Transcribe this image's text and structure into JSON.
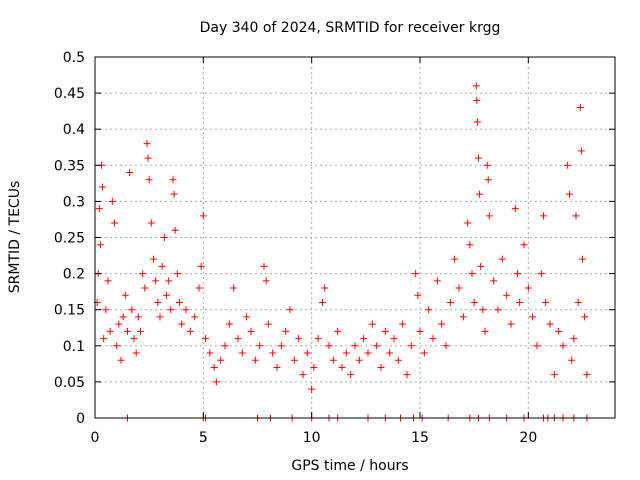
{
  "chart_data": {
    "type": "scatter",
    "title": "Day 340 of 2024, SRMTID for receiver krgg",
    "xlabel": "GPS time / hours",
    "ylabel": "SRMTID / TECUs",
    "xlim": [
      0,
      24
    ],
    "ylim": [
      0,
      0.5
    ],
    "x_ticks": [
      0,
      5,
      10,
      15,
      20
    ],
    "y_ticks": [
      0,
      0.05,
      0.1,
      0.15,
      0.2,
      0.25,
      0.3,
      0.35,
      0.4,
      0.45,
      0.5
    ],
    "grid": true,
    "marker": "+",
    "color": "#ff0000",
    "zero_points_x": [
      1.5,
      5.0,
      5.1,
      7.5,
      8.1,
      9.1,
      10.0,
      10.8,
      11.2,
      12.6,
      13.4,
      14.1,
      14.7,
      15.1,
      16.3,
      17.3,
      17.7,
      18.2,
      19.0,
      19.8,
      20.7,
      20.9,
      21.2,
      21.6,
      22.1,
      22.7
    ],
    "series": [
      {
        "name": "SRMTID",
        "points": [
          [
            0.1,
            0.16
          ],
          [
            0.15,
            0.2
          ],
          [
            0.2,
            0.29
          ],
          [
            0.25,
            0.24
          ],
          [
            0.3,
            0.35
          ],
          [
            0.35,
            0.32
          ],
          [
            0.4,
            0.11
          ],
          [
            0.5,
            0.15
          ],
          [
            0.6,
            0.19
          ],
          [
            0.7,
            0.12
          ],
          [
            0.8,
            0.3
          ],
          [
            0.9,
            0.27
          ],
          [
            1.0,
            0.1
          ],
          [
            1.1,
            0.13
          ],
          [
            1.2,
            0.08
          ],
          [
            1.3,
            0.14
          ],
          [
            1.4,
            0.17
          ],
          [
            1.5,
            0.12
          ],
          [
            1.6,
            0.34
          ],
          [
            1.7,
            0.15
          ],
          [
            1.8,
            0.11
          ],
          [
            1.9,
            0.09
          ],
          [
            2.0,
            0.14
          ],
          [
            2.1,
            0.12
          ],
          [
            2.2,
            0.2
          ],
          [
            2.3,
            0.18
          ],
          [
            2.4,
            0.38
          ],
          [
            2.45,
            0.36
          ],
          [
            2.5,
            0.33
          ],
          [
            2.6,
            0.27
          ],
          [
            2.7,
            0.22
          ],
          [
            2.8,
            0.19
          ],
          [
            2.9,
            0.16
          ],
          [
            3.0,
            0.14
          ],
          [
            3.1,
            0.21
          ],
          [
            3.2,
            0.25
          ],
          [
            3.3,
            0.17
          ],
          [
            3.4,
            0.19
          ],
          [
            3.5,
            0.15
          ],
          [
            3.6,
            0.33
          ],
          [
            3.65,
            0.31
          ],
          [
            3.7,
            0.26
          ],
          [
            3.8,
            0.2
          ],
          [
            3.9,
            0.16
          ],
          [
            4.0,
            0.13
          ],
          [
            4.2,
            0.15
          ],
          [
            4.4,
            0.12
          ],
          [
            4.6,
            0.14
          ],
          [
            4.8,
            0.18
          ],
          [
            4.9,
            0.21
          ],
          [
            5.0,
            0.28
          ],
          [
            5.1,
            0.11
          ],
          [
            5.3,
            0.09
          ],
          [
            5.5,
            0.07
          ],
          [
            5.6,
            0.05
          ],
          [
            5.8,
            0.08
          ],
          [
            6.0,
            0.1
          ],
          [
            6.2,
            0.13
          ],
          [
            6.4,
            0.18
          ],
          [
            6.6,
            0.11
          ],
          [
            6.8,
            0.09
          ],
          [
            7.0,
            0.14
          ],
          [
            7.2,
            0.12
          ],
          [
            7.4,
            0.08
          ],
          [
            7.6,
            0.1
          ],
          [
            7.8,
            0.21
          ],
          [
            7.9,
            0.19
          ],
          [
            8.0,
            0.13
          ],
          [
            8.2,
            0.09
          ],
          [
            8.4,
            0.07
          ],
          [
            8.6,
            0.1
          ],
          [
            8.8,
            0.12
          ],
          [
            9.0,
            0.15
          ],
          [
            9.2,
            0.08
          ],
          [
            9.4,
            0.11
          ],
          [
            9.6,
            0.06
          ],
          [
            9.8,
            0.09
          ],
          [
            10.0,
            0.04
          ],
          [
            10.1,
            0.07
          ],
          [
            10.3,
            0.11
          ],
          [
            10.5,
            0.16
          ],
          [
            10.6,
            0.18
          ],
          [
            10.8,
            0.1
          ],
          [
            11.0,
            0.08
          ],
          [
            11.2,
            0.12
          ],
          [
            11.4,
            0.07
          ],
          [
            11.6,
            0.09
          ],
          [
            11.8,
            0.06
          ],
          [
            12.0,
            0.1
          ],
          [
            12.2,
            0.08
          ],
          [
            12.4,
            0.11
          ],
          [
            12.6,
            0.09
          ],
          [
            12.8,
            0.13
          ],
          [
            13.0,
            0.1
          ],
          [
            13.2,
            0.07
          ],
          [
            13.4,
            0.12
          ],
          [
            13.6,
            0.09
          ],
          [
            13.8,
            0.11
          ],
          [
            14.0,
            0.08
          ],
          [
            14.2,
            0.13
          ],
          [
            14.4,
            0.06
          ],
          [
            14.6,
            0.1
          ],
          [
            14.8,
            0.2
          ],
          [
            14.9,
            0.17
          ],
          [
            15.0,
            0.12
          ],
          [
            15.2,
            0.09
          ],
          [
            15.4,
            0.15
          ],
          [
            15.6,
            0.11
          ],
          [
            15.8,
            0.19
          ],
          [
            16.0,
            0.13
          ],
          [
            16.2,
            0.1
          ],
          [
            16.4,
            0.16
          ],
          [
            16.6,
            0.22
          ],
          [
            16.8,
            0.18
          ],
          [
            17.0,
            0.14
          ],
          [
            17.2,
            0.27
          ],
          [
            17.3,
            0.24
          ],
          [
            17.4,
            0.2
          ],
          [
            17.5,
            0.16
          ],
          [
            17.6,
            0.46
          ],
          [
            17.62,
            0.44
          ],
          [
            17.65,
            0.41
          ],
          [
            17.7,
            0.36
          ],
          [
            17.75,
            0.31
          ],
          [
            17.8,
            0.21
          ],
          [
            17.9,
            0.15
          ],
          [
            18.0,
            0.12
          ],
          [
            18.1,
            0.35
          ],
          [
            18.15,
            0.33
          ],
          [
            18.2,
            0.28
          ],
          [
            18.4,
            0.19
          ],
          [
            18.6,
            0.15
          ],
          [
            18.8,
            0.22
          ],
          [
            19.0,
            0.17
          ],
          [
            19.2,
            0.13
          ],
          [
            19.4,
            0.29
          ],
          [
            19.5,
            0.2
          ],
          [
            19.6,
            0.16
          ],
          [
            19.8,
            0.24
          ],
          [
            20.0,
            0.18
          ],
          [
            20.2,
            0.14
          ],
          [
            20.4,
            0.1
          ],
          [
            20.6,
            0.2
          ],
          [
            20.7,
            0.28
          ],
          [
            20.8,
            0.16
          ],
          [
            21.0,
            0.13
          ],
          [
            21.2,
            0.06
          ],
          [
            21.4,
            0.12
          ],
          [
            21.6,
            0.1
          ],
          [
            21.8,
            0.35
          ],
          [
            21.9,
            0.31
          ],
          [
            22.0,
            0.08
          ],
          [
            22.1,
            0.11
          ],
          [
            22.2,
            0.28
          ],
          [
            22.3,
            0.16
          ],
          [
            22.4,
            0.43
          ],
          [
            22.45,
            0.37
          ],
          [
            22.5,
            0.22
          ],
          [
            22.6,
            0.14
          ],
          [
            22.7,
            0.06
          ]
        ]
      }
    ]
  }
}
